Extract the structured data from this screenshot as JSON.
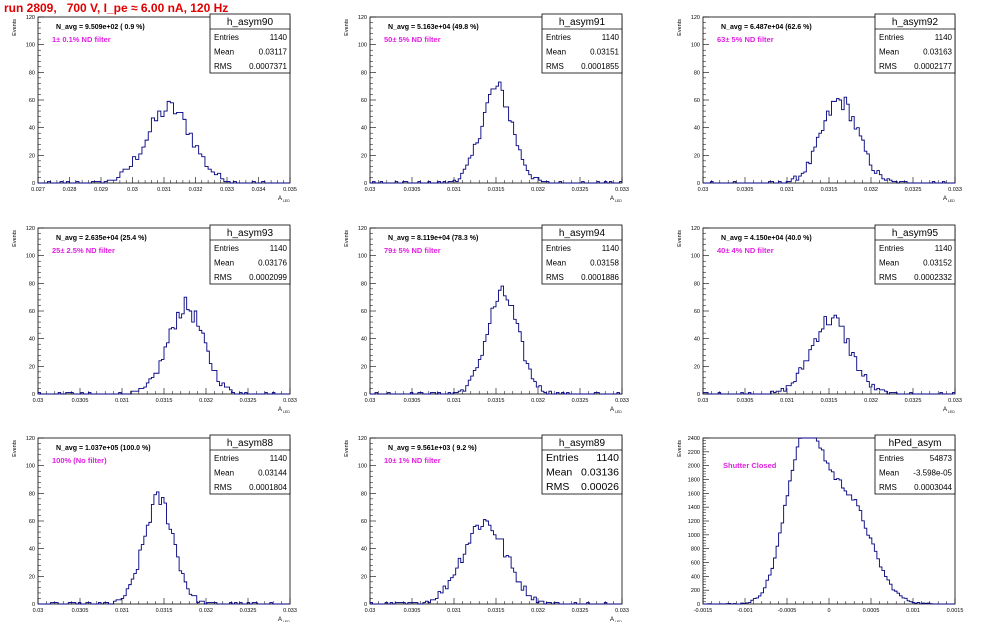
{
  "title": "run 2809,   700 V, I_pe ≈ 6.00 nA, 120 Hz",
  "chart_data": [
    {
      "type": "bar",
      "name": "h_asym90",
      "entries": "1140",
      "mean": "0.03117",
      "rms": "0.0007371",
      "navg": "N_avg = 9.509e+02 ( 0.9 %)",
      "filter": "1± 0.1% ND filter",
      "ylabel": "Events",
      "xlabel": "A_LED",
      "xlim": [
        0.027,
        0.035
      ],
      "ylim": [
        0,
        120
      ],
      "xticks": [
        "0.027",
        "0.028",
        "0.029",
        "0.03",
        "0.031",
        "0.032",
        "0.033",
        "0.034",
        "0.035"
      ],
      "yticks": [
        "0",
        "20",
        "40",
        "60",
        "80",
        "100",
        "120"
      ],
      "hist": {
        "mean": 0.03117,
        "rms": 0.00072,
        "peak": 60,
        "nbins": 80
      }
    },
    {
      "type": "bar",
      "name": "h_asym91",
      "entries": "1140",
      "mean": "0.03151",
      "rms": "0.0001855",
      "navg": "N_avg = 5.163e+04 (49.8 %)",
      "filter": "50± 5% ND filter",
      "ylabel": "Events",
      "xlabel": "A_LED",
      "xlim": [
        0.03,
        0.033
      ],
      "ylim": [
        0,
        120
      ],
      "xticks": [
        "0.03",
        "0.0305",
        "0.031",
        "0.0315",
        "0.032",
        "0.0325",
        "0.033"
      ],
      "yticks": [
        "0",
        "20",
        "40",
        "60",
        "80",
        "100",
        "120"
      ],
      "hist": {
        "mean": 0.03151,
        "rms": 0.000186,
        "peak": 76,
        "nbins": 100
      }
    },
    {
      "type": "bar",
      "name": "h_asym92",
      "entries": "1140",
      "mean": "0.03163",
      "rms": "0.0002177",
      "navg": "N_avg = 6.487e+04 (62.6 %)",
      "filter": "63± 5% ND filter",
      "ylabel": "Events",
      "xlabel": "A_LED",
      "xlim": [
        0.03,
        0.033
      ],
      "ylim": [
        0,
        120
      ],
      "xticks": [
        "0.03",
        "0.0305",
        "0.031",
        "0.0315",
        "0.032",
        "0.0325",
        "0.033"
      ],
      "yticks": [
        "0",
        "20",
        "40",
        "60",
        "80",
        "100",
        "120"
      ],
      "hist": {
        "mean": 0.03163,
        "rms": 0.000218,
        "peak": 66,
        "nbins": 100
      }
    },
    {
      "type": "bar",
      "name": "h_asym93",
      "entries": "1140",
      "mean": "0.03176",
      "rms": "0.0002099",
      "navg": "N_avg = 2.635e+04 (25.4 %)",
      "filter": "25± 2.5% ND filter",
      "ylabel": "Events",
      "xlabel": "A_LED",
      "xlim": [
        0.03,
        0.033
      ],
      "ylim": [
        0,
        120
      ],
      "xticks": [
        "0.03",
        "0.0305",
        "0.031",
        "0.0315",
        "0.032",
        "0.0325",
        "0.033"
      ],
      "yticks": [
        "0",
        "20",
        "40",
        "60",
        "80",
        "100",
        "120"
      ],
      "hist": {
        "mean": 0.03176,
        "rms": 0.00021,
        "peak": 70,
        "nbins": 100
      }
    },
    {
      "type": "bar",
      "name": "h_asym94",
      "entries": "1140",
      "mean": "0.03158",
      "rms": "0.0001886",
      "navg": "N_avg = 8.119e+04 (78.3 %)",
      "filter": "79± 5% ND filter",
      "ylabel": "Events",
      "xlabel": "A_LED",
      "xlim": [
        0.03,
        0.033
      ],
      "ylim": [
        0,
        120
      ],
      "xticks": [
        "0.03",
        "0.0305",
        "0.031",
        "0.0315",
        "0.032",
        "0.0325",
        "0.033"
      ],
      "yticks": [
        "0",
        "20",
        "40",
        "60",
        "80",
        "100",
        "120"
      ],
      "hist": {
        "mean": 0.03158,
        "rms": 0.000189,
        "peak": 80,
        "nbins": 100
      }
    },
    {
      "type": "bar",
      "name": "h_asym95",
      "entries": "1140",
      "mean": "0.03152",
      "rms": "0.0002332",
      "navg": "N_avg = 4.150e+04 (40.0 %)",
      "filter": "40± 4% ND filter",
      "ylabel": "Events",
      "xlabel": "A_LED",
      "xlim": [
        0.03,
        0.033
      ],
      "ylim": [
        0,
        120
      ],
      "xticks": [
        "0.03",
        "0.0305",
        "0.031",
        "0.0315",
        "0.032",
        "0.0325",
        "0.033"
      ],
      "yticks": [
        "0",
        "20",
        "40",
        "60",
        "80",
        "100",
        "120"
      ],
      "hist": {
        "mean": 0.03152,
        "rms": 0.000233,
        "peak": 60,
        "nbins": 100
      }
    },
    {
      "type": "bar",
      "name": "h_asym88",
      "entries": "1140",
      "mean": "0.03144",
      "rms": "0.0001804",
      "navg": "N_avg = 1.037e+05 (100.0 %)",
      "filter": "100% (No filter)",
      "ylabel": "Events",
      "xlabel": "A_LED",
      "xlim": [
        0.03,
        0.033
      ],
      "ylim": [
        0,
        120
      ],
      "xticks": [
        "0.03",
        "0.0305",
        "0.031",
        "0.0315",
        "0.032",
        "0.0325",
        "0.033"
      ],
      "yticks": [
        "0",
        "20",
        "40",
        "60",
        "80",
        "100",
        "120"
      ],
      "hist": {
        "mean": 0.03144,
        "rms": 0.00018,
        "peak": 84,
        "nbins": 100
      }
    },
    {
      "type": "bar",
      "name": "h_asym89",
      "entries": "1140",
      "mean": "0.03136",
      "rms": "0.00026",
      "navg": "N_avg = 9.561e+03 ( 9.2 %)",
      "filter": "10± 1% ND filter",
      "ylabel": "Events",
      "xlabel": "A_LED",
      "xlim": [
        0.03,
        0.033
      ],
      "ylim": [
        0,
        120
      ],
      "xticks": [
        "0.03",
        "0.0305",
        "0.031",
        "0.0315",
        "0.032",
        "0.0325",
        "0.033"
      ],
      "yticks": [
        "0",
        "20",
        "40",
        "60",
        "80",
        "100",
        "120"
      ],
      "hist": {
        "mean": 0.03136,
        "rms": 0.00026,
        "peak": 66,
        "nbins": 100
      },
      "bigstats": true
    },
    {
      "type": "bar",
      "name": "hPed_asym",
      "entries": "54873",
      "mean": "-3.598e-05",
      "rms": "0.0003044",
      "navg": "",
      "filter": "Shutter Closed",
      "ylabel": "Events",
      "xlabel": "",
      "xlim": [
        -0.0015,
        0.0015
      ],
      "ylim": [
        0,
        2400
      ],
      "xticks": [
        "-0.0015",
        "-0.001",
        "-0.0005",
        "0",
        "0.0005",
        "0.001",
        "0.0015"
      ],
      "yticks": [
        "0",
        "200",
        "400",
        "600",
        "800",
        "1000",
        "1200",
        "1400",
        "1600",
        "1800",
        "2000",
        "2200",
        "2400"
      ],
      "hist": {
        "bimodal": true,
        "peak": 2360,
        "nbins": 100
      }
    }
  ]
}
